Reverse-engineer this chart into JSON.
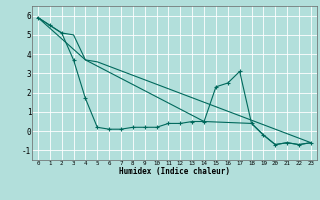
{
  "xlabel": "Humidex (Indice chaleur)",
  "background_color": "#b2dfdb",
  "grid_color": "#ffffff",
  "line_color": "#00695c",
  "xlim": [
    -0.5,
    23.5
  ],
  "ylim": [
    -1.5,
    6.5
  ],
  "yticks": [
    -1,
    0,
    1,
    2,
    3,
    4,
    5,
    6
  ],
  "xticks": [
    0,
    1,
    2,
    3,
    4,
    5,
    6,
    7,
    8,
    9,
    10,
    11,
    12,
    13,
    14,
    15,
    16,
    17,
    18,
    19,
    20,
    21,
    22,
    23
  ],
  "lines": [
    {
      "x": [
        0,
        1,
        2,
        3,
        4,
        5,
        6,
        7,
        8,
        9,
        10,
        11,
        12,
        13,
        14,
        15,
        16,
        17,
        18,
        19,
        20,
        21,
        22,
        23
      ],
      "y": [
        5.9,
        5.5,
        5.1,
        3.7,
        1.7,
        0.2,
        0.1,
        0.1,
        0.2,
        0.2,
        0.2,
        0.4,
        0.4,
        0.5,
        0.5,
        2.3,
        2.5,
        3.1,
        0.4,
        -0.2,
        -0.7,
        -0.6,
        -0.7,
        -0.6
      ],
      "marker": "+"
    },
    {
      "x": [
        0,
        1,
        2,
        3,
        4,
        5,
        23
      ],
      "y": [
        5.9,
        5.5,
        5.1,
        5.0,
        3.7,
        3.6,
        -0.6
      ],
      "marker": null
    },
    {
      "x": [
        0,
        4,
        14,
        18,
        19,
        20,
        21,
        22,
        23
      ],
      "y": [
        5.9,
        3.7,
        0.5,
        0.4,
        -0.2,
        -0.7,
        -0.6,
        -0.7,
        -0.6
      ],
      "marker": null
    }
  ]
}
